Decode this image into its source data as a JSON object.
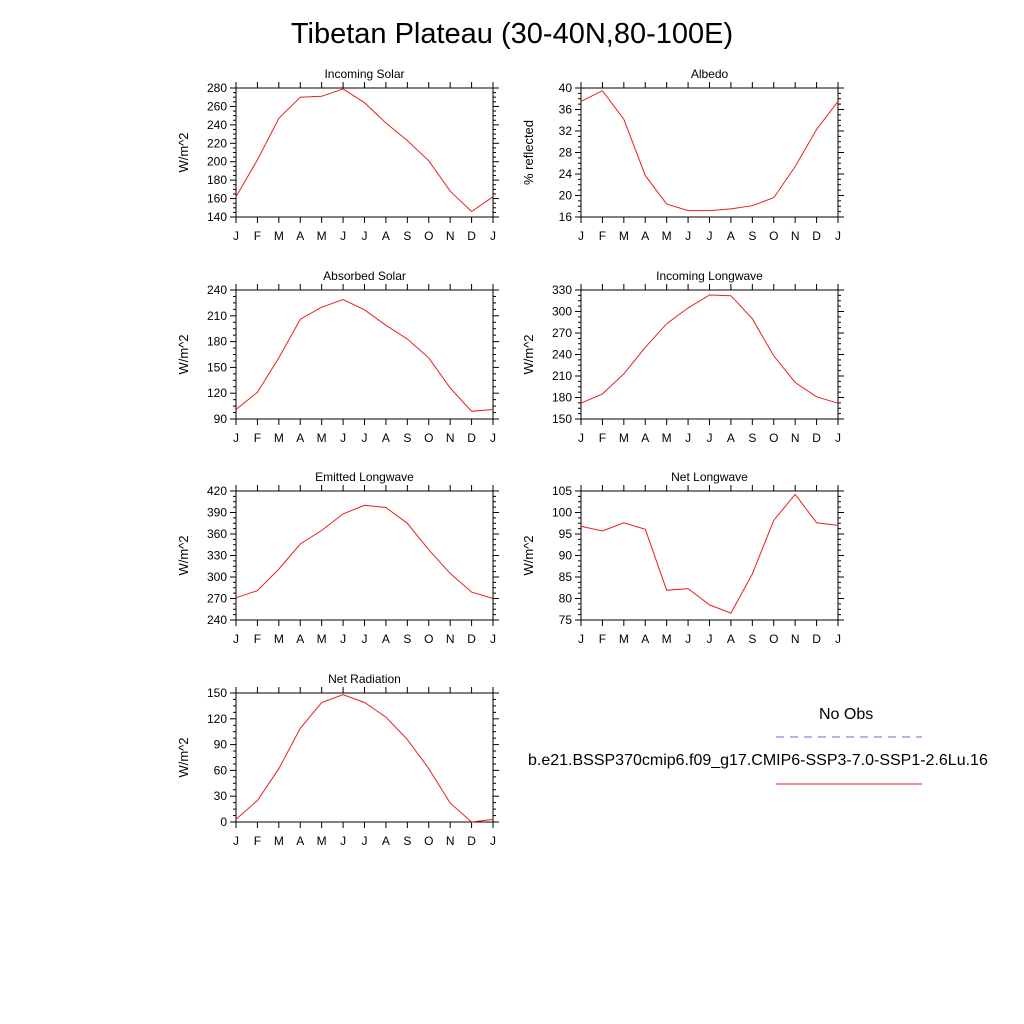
{
  "figure": {
    "title": "Tibetan Plateau (30-40N,80-100E)"
  },
  "months": [
    "J",
    "F",
    "M",
    "A",
    "M",
    "J",
    "J",
    "A",
    "S",
    "O",
    "N",
    "D",
    "J"
  ],
  "colors": {
    "model_line": "#e8201e",
    "obs_line": "#6b6bd8"
  },
  "legend": {
    "obs_label": "No Obs",
    "model_label": "b.e21.BSSP370cmip6.f09_g17.CMIP6-SSP3-7.0-SSP1-2.6Lu.16",
    "obs_line_style": "dashed",
    "model_line_style": "solid"
  },
  "chart_data": [
    {
      "type": "line",
      "title": "Incoming Solar",
      "ylabel": "W/m^2",
      "ylim": [
        140,
        280
      ],
      "yticks": [
        140,
        160,
        180,
        200,
        220,
        240,
        260,
        280
      ],
      "values": [
        162,
        202,
        247,
        270,
        271,
        279,
        264,
        242,
        223,
        201,
        168,
        146,
        162
      ]
    },
    {
      "type": "line",
      "title": "Albedo",
      "ylabel": "% reflected",
      "ylim": [
        16,
        40
      ],
      "yticks": [
        16,
        20,
        24,
        28,
        32,
        36,
        40
      ],
      "values": [
        37.5,
        39.5,
        34.2,
        23.7,
        18.4,
        17.2,
        17.2,
        17.5,
        18.1,
        19.6,
        25.4,
        32.3,
        37.5
      ]
    },
    {
      "type": "line",
      "title": "Absorbed Solar",
      "ylabel": "W/m^2",
      "ylim": [
        90,
        240
      ],
      "yticks": [
        90,
        120,
        150,
        180,
        210,
        240
      ],
      "values": [
        101,
        121,
        161,
        206,
        220,
        229,
        217,
        199,
        183,
        161,
        126,
        99,
        101
      ]
    },
    {
      "type": "line",
      "title": "Incoming Longwave",
      "ylabel": "W/m^2",
      "ylim": [
        150,
        330
      ],
      "yticks": [
        150,
        180,
        210,
        240,
        270,
        300,
        330
      ],
      "values": [
        172,
        185,
        213,
        250,
        283,
        305,
        323,
        322,
        290,
        238,
        201,
        181,
        172
      ]
    },
    {
      "type": "line",
      "title": "Emitted Longwave",
      "ylabel": "W/m^2",
      "ylim": [
        240,
        420
      ],
      "yticks": [
        240,
        270,
        300,
        330,
        360,
        390,
        420
      ],
      "values": [
        271,
        281,
        311,
        346,
        365,
        388,
        400,
        397,
        375,
        338,
        305,
        279,
        270
      ]
    },
    {
      "type": "line",
      "title": "Net Longwave",
      "ylabel": "W/m^2",
      "ylim": [
        75,
        105
      ],
      "yticks": [
        75,
        80,
        85,
        90,
        95,
        100,
        105
      ],
      "values": [
        96.8,
        95.7,
        97.6,
        96.1,
        81.9,
        82.3,
        78.5,
        76.6,
        85.7,
        98.2,
        104.2,
        97.6,
        97.0
      ]
    },
    {
      "type": "line",
      "title": "Net Radiation",
      "ylabel": "W/m^2",
      "ylim": [
        0,
        150
      ],
      "yticks": [
        0,
        30,
        60,
        90,
        120,
        150
      ],
      "values": [
        3,
        25,
        62,
        109,
        139,
        148,
        139,
        122,
        96,
        62,
        22,
        0,
        3
      ]
    }
  ]
}
